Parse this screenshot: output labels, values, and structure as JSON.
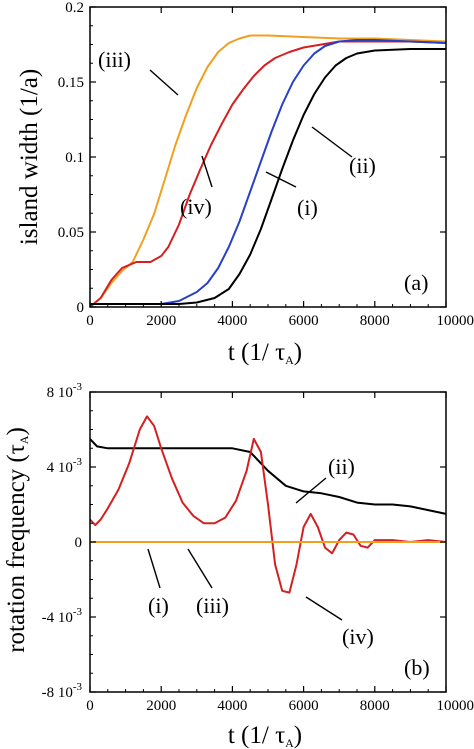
{
  "chart_data": [
    {
      "panel_label": "(a)",
      "type": "line",
      "ylabel": "island width (1/a)",
      "xlabel_main": "t (1/ ",
      "xlabel_sym": "τ",
      "xlabel_sub": "A",
      "xlabel_end": ")",
      "xlim": [
        0,
        10000
      ],
      "ylim": [
        0,
        0.2
      ],
      "xticks": [
        0,
        2000,
        4000,
        6000,
        8000,
        10000
      ],
      "xtick_labels": [
        "0",
        "2000",
        "4000",
        "6000",
        "8000",
        "10000"
      ],
      "yticks": [
        0,
        0.05,
        0.1,
        0.15,
        0.2
      ],
      "ytick_labels": [
        "0",
        "0.05",
        "0.1",
        "0.15",
        "0.2"
      ],
      "series": [
        {
          "name": "(iii)",
          "color": "#f0a020",
          "x": [
            0,
            300,
            600,
            900,
            1200,
            1500,
            1800,
            2100,
            2400,
            2700,
            3000,
            3300,
            3600,
            3900,
            4200,
            4500,
            5000,
            6000,
            7000,
            8000,
            9000,
            10000
          ],
          "y": [
            0,
            0.006,
            0.016,
            0.024,
            0.03,
            0.045,
            0.062,
            0.085,
            0.108,
            0.128,
            0.146,
            0.16,
            0.17,
            0.176,
            0.179,
            0.181,
            0.181,
            0.18,
            0.179,
            0.179,
            0.178,
            0.177
          ]
        },
        {
          "name": "(iv)",
          "color": "#d42020",
          "x": [
            0,
            300,
            600,
            900,
            1300,
            1700,
            2000,
            2200,
            2500,
            2800,
            3100,
            3400,
            3700,
            4000,
            4300,
            4600,
            4900,
            5200,
            5600,
            6000,
            6500,
            7000,
            8000,
            9000,
            10000
          ],
          "y": [
            0,
            0.006,
            0.018,
            0.026,
            0.03,
            0.03,
            0.034,
            0.04,
            0.055,
            0.075,
            0.092,
            0.108,
            0.122,
            0.135,
            0.145,
            0.154,
            0.161,
            0.166,
            0.17,
            0.173,
            0.175,
            0.177,
            0.177,
            0.177,
            0.176
          ]
        },
        {
          "name": "(i)",
          "color": "#2840c8",
          "x": [
            0,
            500,
            1000,
            1500,
            2000,
            2500,
            3000,
            3300,
            3600,
            3900,
            4200,
            4500,
            4800,
            5100,
            5400,
            5700,
            6000,
            6300,
            6600,
            7000,
            7500,
            8000,
            9000,
            10000
          ],
          "y": [
            0.002,
            0.002,
            0.002,
            0.002,
            0.002,
            0.004,
            0.01,
            0.016,
            0.026,
            0.04,
            0.057,
            0.077,
            0.097,
            0.117,
            0.135,
            0.15,
            0.161,
            0.169,
            0.174,
            0.177,
            0.178,
            0.178,
            0.177,
            0.176
          ]
        },
        {
          "name": "(ii)",
          "color": "#000000",
          "x": [
            0,
            1000,
            2000,
            2500,
            3000,
            3500,
            3900,
            4200,
            4500,
            4800,
            5100,
            5400,
            5700,
            6000,
            6300,
            6600,
            6900,
            7200,
            7500,
            8000,
            9000,
            10000
          ],
          "y": [
            0.002,
            0.002,
            0.002,
            0.002,
            0.003,
            0.006,
            0.012,
            0.022,
            0.035,
            0.052,
            0.072,
            0.092,
            0.111,
            0.128,
            0.142,
            0.153,
            0.161,
            0.166,
            0.169,
            0.171,
            0.172,
            0.172
          ]
        }
      ],
      "annotations": [
        "(iii)",
        "(iv)",
        "(i)",
        "(ii)"
      ]
    },
    {
      "panel_label": "(b)",
      "type": "line",
      "ylabel_main": "rotation frequency (",
      "ylabel_sym": "τ",
      "ylabel_sub": "A",
      "ylabel_end": ")",
      "xlabel_main": "t (1/ ",
      "xlabel_sym": "τ",
      "xlabel_sub": "A",
      "xlabel_end": ")",
      "xlim": [
        0,
        10000
      ],
      "ylim": [
        -0.008,
        0.008
      ],
      "xticks": [
        0,
        2000,
        4000,
        6000,
        8000,
        10000
      ],
      "xtick_labels": [
        "0",
        "2000",
        "4000",
        "6000",
        "8000",
        "10000"
      ],
      "yticks": [
        -0.008,
        -0.004,
        0,
        0.004,
        0.008
      ],
      "ytick_mant": [
        "-8 10",
        "-4 10",
        "0",
        "4 10",
        "8 10"
      ],
      "ytick_exp": [
        "-3",
        "-3",
        "",
        "-3",
        "-3"
      ],
      "series": [
        {
          "name": "(ii)",
          "color": "#000000",
          "x": [
            0,
            200,
            500,
            1000,
            2000,
            3000,
            4000,
            4500,
            5000,
            5500,
            6000,
            6500,
            7000,
            7500,
            8000,
            8500,
            9000,
            9500,
            10000
          ],
          "y": [
            0.0055,
            0.0051,
            0.005,
            0.005,
            0.005,
            0.005,
            0.005,
            0.0048,
            0.0038,
            0.003,
            0.0027,
            0.0026,
            0.0024,
            0.0021,
            0.002,
            0.002,
            0.0019,
            0.0017,
            0.0015
          ]
        },
        {
          "name": "(iv)",
          "color": "#d42020",
          "x": [
            0,
            150,
            300,
            500,
            800,
            1100,
            1400,
            1600,
            1800,
            2000,
            2300,
            2600,
            2900,
            3200,
            3500,
            3800,
            4100,
            4400,
            4600,
            4800,
            5000,
            5200,
            5400,
            5600,
            5800,
            6000,
            6200,
            6400,
            6600,
            6800,
            7000,
            7200,
            7400,
            7600,
            7800,
            8000,
            8500,
            9000,
            9500,
            10000
          ],
          "y": [
            0.0012,
            0.0009,
            0.0012,
            0.0018,
            0.0028,
            0.0042,
            0.006,
            0.0067,
            0.0062,
            0.005,
            0.0034,
            0.0021,
            0.0014,
            0.001,
            0.001,
            0.0013,
            0.0022,
            0.0038,
            0.0055,
            0.0048,
            0.002,
            -0.0012,
            -0.0026,
            -0.0027,
            -0.0012,
            0.0008,
            0.0015,
            0.0008,
            -0.0003,
            -0.0006,
            0.0001,
            0.0005,
            0.0004,
            -0.0002,
            -0.0003,
            0.0001,
            0.0001,
            0.0,
            0.0001,
            0.0
          ]
        },
        {
          "name": "(i)",
          "color": "#2840c8",
          "x": [
            0,
            10000
          ],
          "y": [
            0,
            0
          ]
        },
        {
          "name": "(iii)",
          "color": "#f0a020",
          "x": [
            0,
            10000
          ],
          "y": [
            0,
            0
          ]
        }
      ],
      "annotations": [
        "(ii)",
        "(i)",
        "(iii)",
        "(iv)"
      ]
    }
  ]
}
